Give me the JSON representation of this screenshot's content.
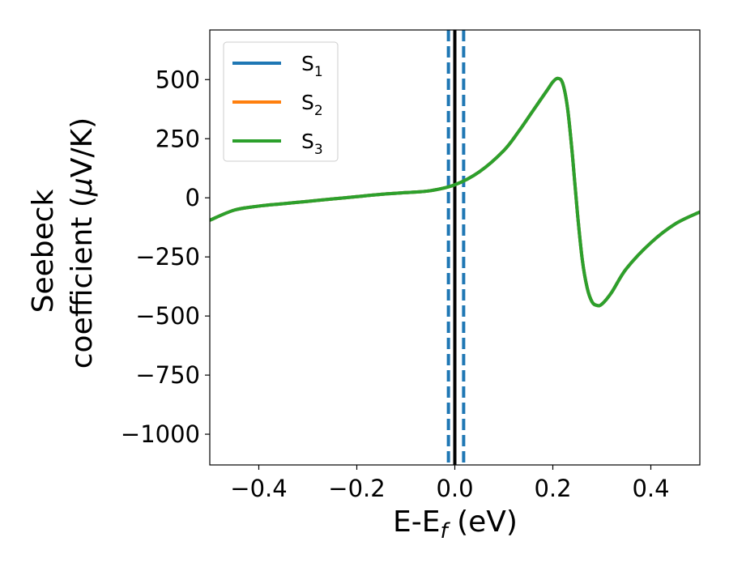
{
  "chart_data": {
    "type": "line",
    "xlabel": "E-E",
    "xlabel_sub": "f",
    "xlabel_unit": " (eV)",
    "ylabel_line1": "Seebeck",
    "ylabel_line2": "coefficient  (",
    "ylabel_mu": "μ",
    "ylabel_line2_end": "V/K)",
    "xlim": [
      -0.5,
      0.5
    ],
    "ylim": [
      -1130,
      710
    ],
    "x_ticks": [
      -0.4,
      -0.2,
      0.0,
      0.2,
      0.4
    ],
    "x_tick_labels": [
      "−0.4",
      "−0.2",
      "0.0",
      "0.2",
      "0.4"
    ],
    "y_ticks": [
      500,
      250,
      0,
      -250,
      -500,
      -750,
      -1000
    ],
    "y_tick_labels": [
      "500",
      "250",
      "0",
      "−250",
      "−500",
      "−750",
      "−1000"
    ],
    "grid": false,
    "legend_position": "top-left",
    "vertical_lines": [
      {
        "x": 0.0,
        "style": "solid",
        "color": "#000000"
      },
      {
        "x": -0.013,
        "style": "dashed",
        "color": "#1f77b4"
      },
      {
        "x": 0.018,
        "style": "dashed",
        "color": "#1f77b4"
      }
    ],
    "x": [
      -0.5,
      -0.45,
      -0.4,
      -0.35,
      -0.3,
      -0.25,
      -0.2,
      -0.15,
      -0.1,
      -0.05,
      0.0,
      0.05,
      0.1,
      0.13,
      0.16,
      0.19,
      0.2,
      0.21,
      0.22,
      0.23,
      0.24,
      0.25,
      0.26,
      0.27,
      0.28,
      0.29,
      0.3,
      0.32,
      0.35,
      0.4,
      0.45,
      0.5
    ],
    "series": [
      {
        "name": "S",
        "sub": "1",
        "color": "#1f77b4",
        "values": [
          -95,
          -52,
          -35,
          -25,
          -15,
          -5,
          5,
          15,
          22,
          30,
          55,
          110,
          200,
          280,
          370,
          460,
          490,
          505,
          485,
          380,
          180,
          -60,
          -260,
          -380,
          -440,
          -455,
          -450,
          -400,
          -300,
          -190,
          -110,
          -60
        ]
      },
      {
        "name": "S",
        "sub": "2",
        "color": "#ff7f0e",
        "values": [
          -95,
          -52,
          -35,
          -25,
          -15,
          -5,
          5,
          15,
          22,
          30,
          55,
          110,
          200,
          280,
          370,
          460,
          490,
          505,
          485,
          380,
          180,
          -60,
          -260,
          -380,
          -440,
          -455,
          -450,
          -400,
          -300,
          -190,
          -110,
          -60
        ]
      },
      {
        "name": "S",
        "sub": "3",
        "color": "#2ca02c",
        "values": [
          -95,
          -52,
          -35,
          -25,
          -15,
          -5,
          5,
          15,
          22,
          30,
          55,
          110,
          200,
          280,
          370,
          460,
          490,
          505,
          485,
          380,
          180,
          -60,
          -260,
          -380,
          -440,
          -455,
          -450,
          -400,
          -300,
          -190,
          -110,
          -60
        ]
      }
    ]
  }
}
